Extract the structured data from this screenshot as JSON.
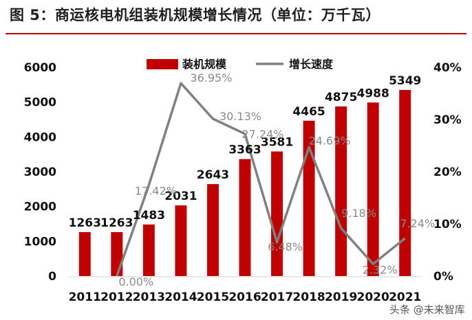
{
  "title": "图 5：商运核电机组装机规模增长情况（单位：万千瓦）",
  "watermark": "头条 @未来智库",
  "colors": {
    "bar": "#c00000",
    "line": "#808080",
    "title_rule": "#b40000"
  },
  "chart_data": {
    "type": "bar",
    "categories": [
      "2011",
      "2012",
      "2013",
      "2014",
      "2015",
      "2016",
      "2017",
      "2018",
      "2019",
      "2020",
      "2021"
    ],
    "series": [
      {
        "name": "装机规模",
        "type": "bar",
        "axis": "left",
        "values": [
          1263,
          1263,
          1483,
          2031,
          2643,
          3363,
          3581,
          4465,
          4875,
          4988,
          5349
        ]
      },
      {
        "name": "增长速度",
        "type": "line",
        "axis": "right",
        "values": [
          null,
          0.0,
          17.42,
          36.95,
          30.13,
          27.24,
          6.48,
          24.69,
          9.18,
          2.32,
          7.24
        ],
        "labels": [
          null,
          "0.00%",
          "17.42%",
          "36.95%",
          "30.13%",
          "27.24%",
          "6.48%",
          "24.69%",
          "9.18%",
          "2.32%",
          "7.24%"
        ]
      }
    ],
    "y_left": {
      "min": 0,
      "max": 6000,
      "ticks": [
        "0",
        "1000",
        "2000",
        "3000",
        "4000",
        "5000",
        "6000"
      ]
    },
    "y_right": {
      "min": 0,
      "max": 40,
      "ticks": [
        "0%",
        "10%",
        "20%",
        "30%",
        "40%"
      ]
    },
    "legend": "top-center",
    "grid": false
  }
}
